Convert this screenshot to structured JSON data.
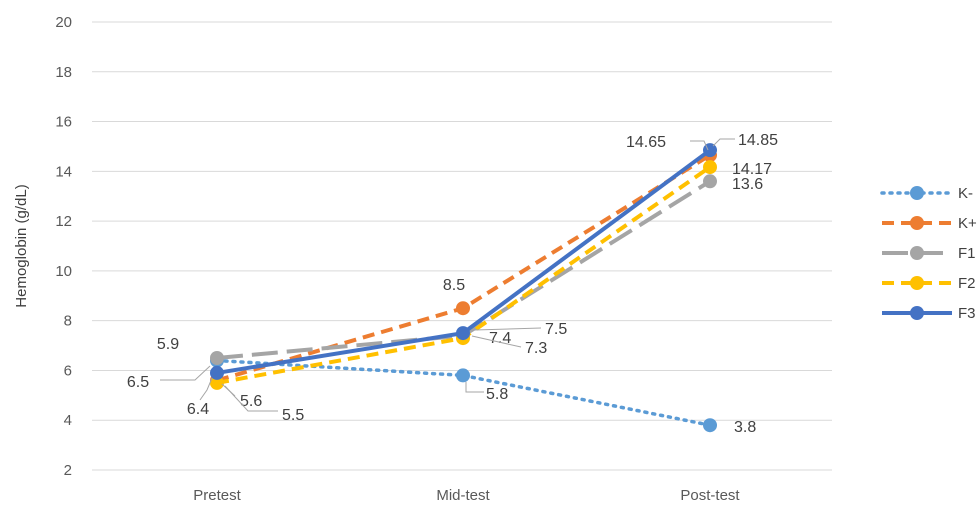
{
  "chart_data": {
    "type": "line",
    "title": "",
    "xlabel": "",
    "ylabel": "Hemoglobin (g/dL)",
    "ylim": [
      2,
      20
    ],
    "yticks": [
      2,
      4,
      6,
      8,
      10,
      12,
      14,
      16,
      18,
      20
    ],
    "grid": true,
    "legend_position": "right",
    "categories": [
      "Pretest",
      "Mid-test",
      "Post-test"
    ],
    "series": [
      {
        "name": "K-",
        "values": [
          6.4,
          5.8,
          3.8
        ],
        "color": "#5b9bd5",
        "dash": "dotted"
      },
      {
        "name": "K+",
        "values": [
          5.6,
          8.5,
          14.65
        ],
        "color": "#ed7d31",
        "dash": "dashed"
      },
      {
        "name": "F1",
        "values": [
          6.5,
          7.4,
          13.6
        ],
        "color": "#a5a5a5",
        "dash": "longdash"
      },
      {
        "name": "F2",
        "values": [
          5.5,
          7.3,
          14.17
        ],
        "color": "#ffc000",
        "dash": "dashed"
      },
      {
        "name": "F3",
        "values": [
          5.9,
          7.5,
          14.85
        ],
        "color": "#4472c4",
        "dash": "solid"
      }
    ],
    "data_labels": [
      {
        "text": "5.9",
        "series": "F3",
        "index": 0
      },
      {
        "text": "6.5",
        "series": "F1",
        "index": 0
      },
      {
        "text": "6.4",
        "series": "K-",
        "index": 0
      },
      {
        "text": "5.6",
        "series": "K+",
        "index": 0
      },
      {
        "text": "5.5",
        "series": "F2",
        "index": 0
      },
      {
        "text": "8.5",
        "series": "K+",
        "index": 1
      },
      {
        "text": "7.5",
        "series": "F3",
        "index": 1
      },
      {
        "text": "7.4",
        "series": "F1",
        "index": 1
      },
      {
        "text": "7.3",
        "series": "F2",
        "index": 1
      },
      {
        "text": "5.8",
        "series": "K-",
        "index": 1
      },
      {
        "text": "14.65",
        "series": "K+",
        "index": 2
      },
      {
        "text": "14.85",
        "series": "F3",
        "index": 2
      },
      {
        "text": "14.17",
        "series": "F2",
        "index": 2
      },
      {
        "text": "13.6",
        "series": "F1",
        "index": 2
      },
      {
        "text": "3.8",
        "series": "K-",
        "index": 2
      }
    ]
  }
}
